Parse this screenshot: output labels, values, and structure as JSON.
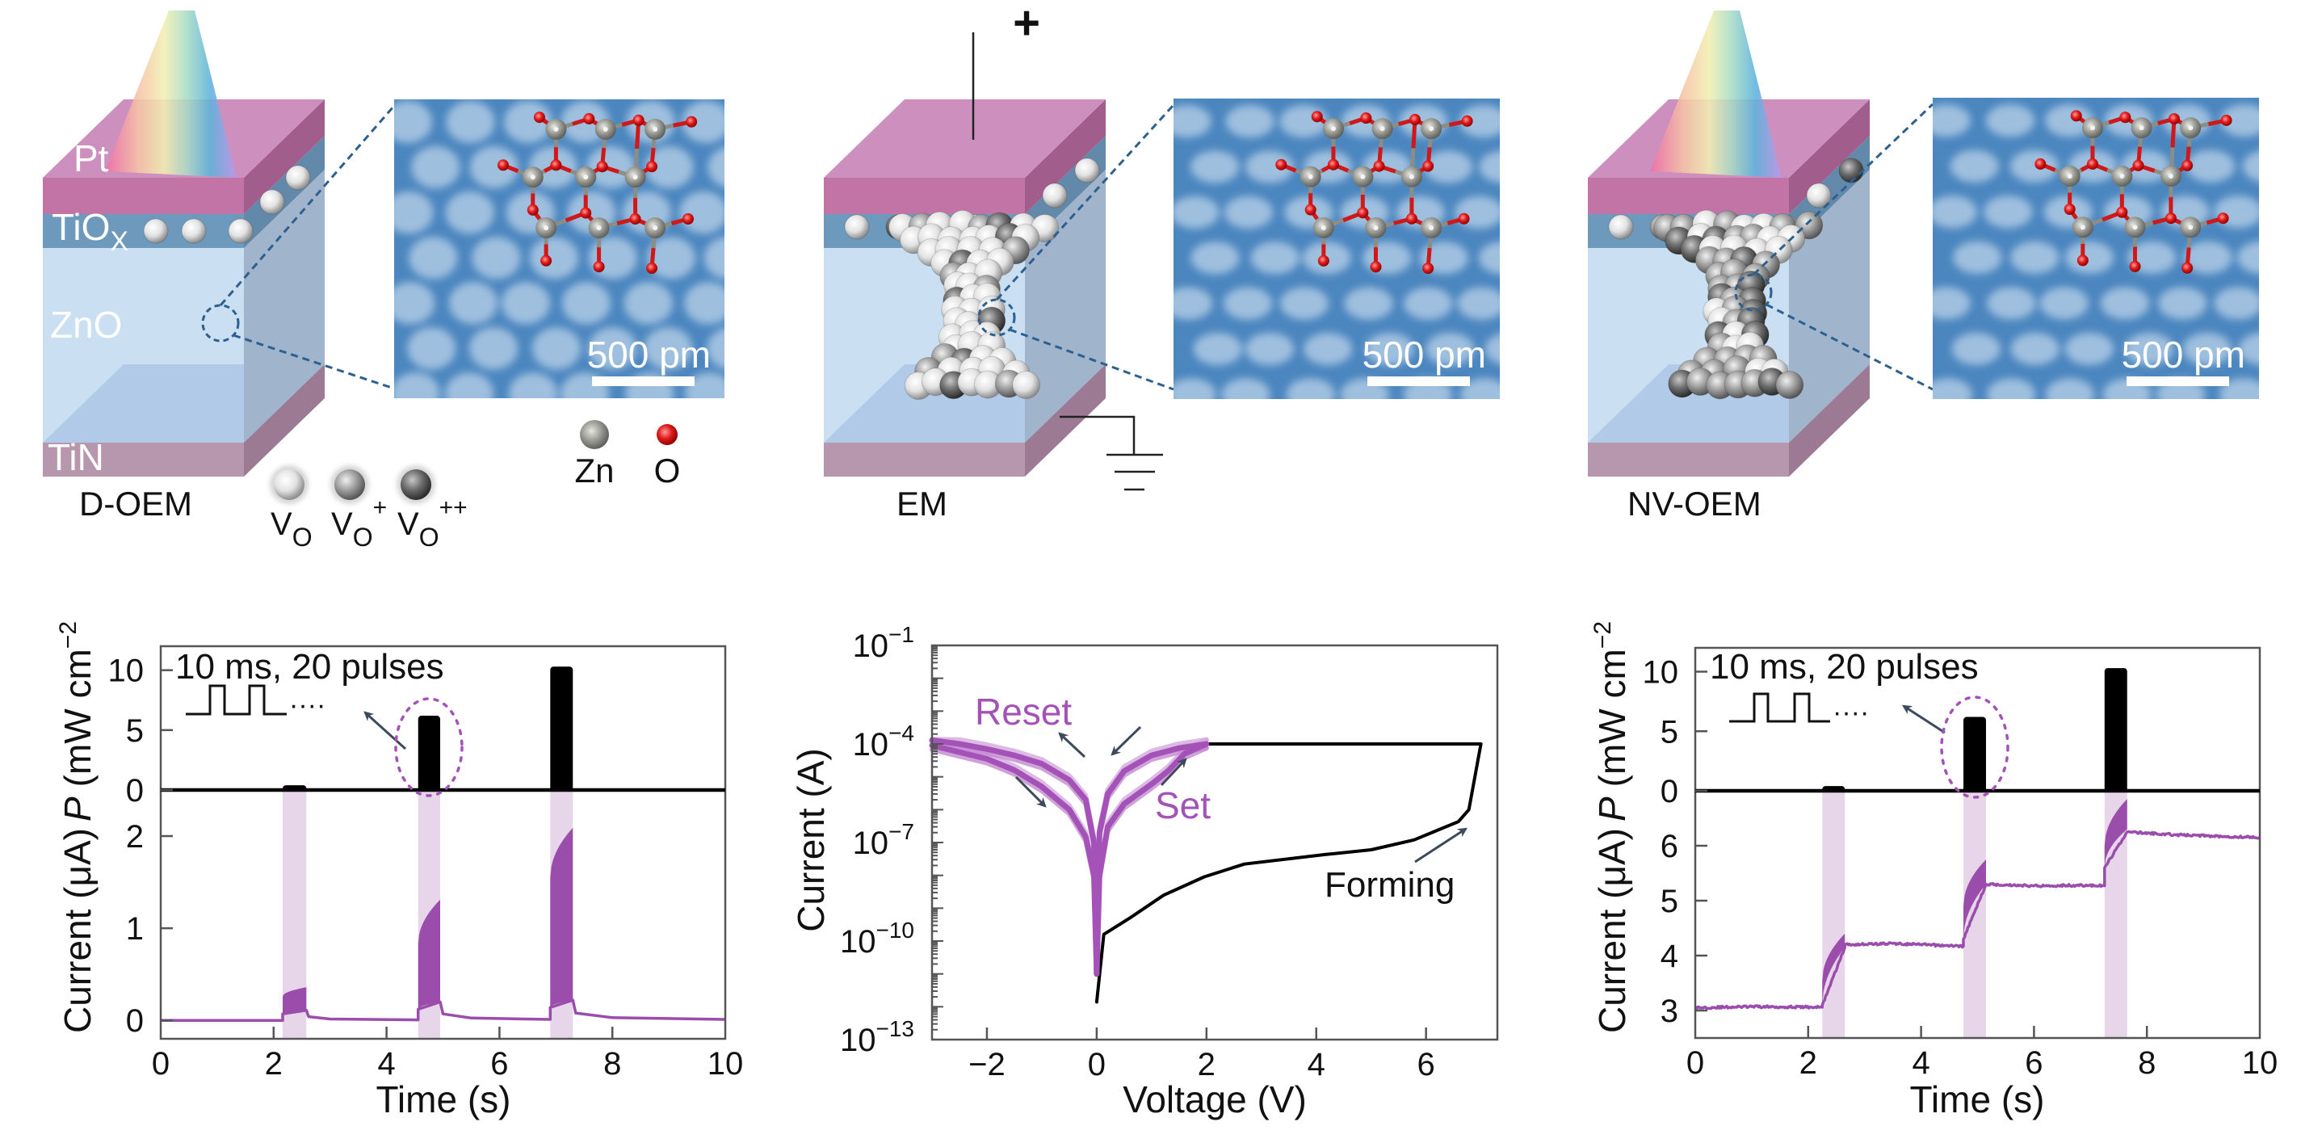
{
  "panels": [
    {
      "name": "D-OEM",
      "layer_labels": {
        "pt": "Pt",
        "tiox": "TiO",
        "tiox_sub": "X",
        "zno": "ZnO",
        "tin": "TiN"
      },
      "scale_bar": "500 pm",
      "illumination": true,
      "filament": "none"
    },
    {
      "name": "EM",
      "bias": "+",
      "scale_bar": "500 pm",
      "illumination": false,
      "filament": "mixed"
    },
    {
      "name": "NV-OEM",
      "scale_bar": "500 pm",
      "illumination": true,
      "filament": "grey"
    }
  ],
  "vacancy_legend": [
    {
      "symbol": "V",
      "sub": "O",
      "sup": ""
    },
    {
      "symbol": "V",
      "sub": "O",
      "sup": "+"
    },
    {
      "symbol": "V",
      "sub": "O",
      "sup": "++"
    }
  ],
  "atom_legend": [
    {
      "label": "Zn",
      "color": "#9a9a96"
    },
    {
      "label": "O",
      "color": "#d41c1c"
    }
  ],
  "colors": {
    "trace": "#9b4dab",
    "pulse_band": "#e7d5ea",
    "switching": "#a452b8",
    "forming": "#000000",
    "arrow": "#3c4a5c",
    "micrograph": "#4b86bf"
  },
  "chart_data": [
    {
      "type": "line",
      "panel": "D-OEM",
      "xlabel": "Time (s)",
      "xlim": [
        0,
        10
      ],
      "xticks": [
        0,
        2,
        4,
        6,
        8,
        10
      ],
      "annotation": "10 ms, 20 pulses",
      "top": {
        "ylabel": {
          "symbol": "P",
          "unit": "(mW cm",
          "exp": "−2"
        },
        "ylim": [
          0,
          12
        ],
        "yticks": [
          0,
          5,
          10
        ],
        "pulses": [
          {
            "start": 2.16,
            "end": 2.58,
            "power": 0.4
          },
          {
            "start": 4.56,
            "end": 4.95,
            "power": 6.2
          },
          {
            "start": 6.9,
            "end": 7.3,
            "power": 10.3
          }
        ]
      },
      "bottom": {
        "ylabel": "Current (μA)",
        "ylim": [
          -0.2,
          2.5
        ],
        "yticks": [
          0,
          1,
          2
        ],
        "series": [
          [
            0,
            0
          ],
          [
            2.16,
            0
          ],
          [
            2.16,
            0.07
          ],
          [
            2.58,
            0.11
          ],
          [
            2.62,
            0.04
          ],
          [
            3.0,
            0.015
          ],
          [
            4.56,
            0.005
          ],
          [
            4.56,
            0.12
          ],
          [
            4.95,
            0.2
          ],
          [
            5.0,
            0.07
          ],
          [
            5.5,
            0.025
          ],
          [
            6.9,
            0.01
          ],
          [
            6.9,
            0.14
          ],
          [
            7.3,
            0.22
          ],
          [
            7.35,
            0.08
          ],
          [
            8.0,
            0.03
          ],
          [
            10,
            0.01
          ]
        ],
        "envelopes": [
          {
            "start": 2.16,
            "end": 2.58,
            "lower": [
              0.07,
              0.11
            ],
            "upper": [
              0.26,
              0.36
            ]
          },
          {
            "start": 4.56,
            "end": 4.95,
            "lower": [
              0.12,
              0.2
            ],
            "upper": [
              0.83,
              1.31
            ]
          },
          {
            "start": 6.9,
            "end": 7.3,
            "lower": [
              0.14,
              0.22
            ],
            "upper": [
              1.55,
              2.09
            ]
          }
        ]
      }
    },
    {
      "type": "line",
      "panel": "EM",
      "xlabel": "Voltage (V)",
      "ylabel": "Current (A)",
      "yscale": "log",
      "xlim": [
        -3,
        7.3
      ],
      "xticks": [
        -2,
        0,
        2,
        4,
        6
      ],
      "xtick_labels": [
        "−2",
        "0",
        "2",
        "4",
        "6"
      ],
      "ylim": [
        1e-13,
        0.1
      ],
      "yticks": [
        0.1,
        0.0001,
        1e-07,
        1e-10,
        1e-13
      ],
      "ytick_labels": [
        {
          "base": "10",
          "exp": "−1"
        },
        {
          "base": "10",
          "exp": "−4"
        },
        {
          "base": "10",
          "exp": "−7"
        },
        {
          "base": "10",
          "exp": "−10"
        },
        {
          "base": "10",
          "exp": "−13"
        }
      ],
      "series": [
        {
          "name": "Reset",
          "curves": [
            [
              [
                -3,
                0.00013
              ],
              [
                -2.5,
                0.0001
              ],
              [
                -2,
                7e-05
              ],
              [
                -1.5,
                4.5e-05
              ],
              [
                -1,
                2.5e-05
              ],
              [
                -0.5,
                8e-06
              ],
              [
                -0.2,
                2e-06
              ],
              [
                -0.05,
                1e-07
              ],
              [
                0,
                1e-11
              ]
            ],
            [
              [
                -3,
                9e-05
              ],
              [
                -2,
                3.5e-05
              ],
              [
                -1.5,
                1.6e-05
              ],
              [
                -1,
                5e-06
              ],
              [
                -0.5,
                1e-06
              ],
              [
                -0.2,
                1.5e-07
              ],
              [
                -0.05,
                1e-08
              ],
              [
                0,
                1e-11
              ]
            ]
          ]
        },
        {
          "name": "Set",
          "curves": [
            [
              [
                0,
                1e-11
              ],
              [
                0.05,
                1e-08
              ],
              [
                0.2,
                3e-07
              ],
              [
                0.5,
                1.5e-06
              ],
              [
                1,
                6e-06
              ],
              [
                1.3,
                1.5e-05
              ],
              [
                1.6,
                5e-05
              ],
              [
                2,
                0.0001
              ]
            ],
            [
              [
                0,
                1e-11
              ],
              [
                0.05,
                2e-07
              ],
              [
                0.2,
                3e-06
              ],
              [
                0.5,
                1.5e-05
              ],
              [
                1,
                4.5e-05
              ],
              [
                1.5,
                7.5e-05
              ],
              [
                2,
                0.0001
              ]
            ]
          ]
        },
        {
          "name": "Forming",
          "points": [
            [
              0,
              1.4e-12
            ],
            [
              0.13,
              1.6e-10
            ],
            [
              0.6,
              5e-10
            ],
            [
              1.22,
              2.5e-09
            ],
            [
              1.96,
              9e-09
            ],
            [
              2.69,
              2.2e-08
            ],
            [
              4.16,
              4.3e-08
            ],
            [
              5.0,
              6e-08
            ],
            [
              5.78,
              1.2e-07
            ],
            [
              6.59,
              4.3e-07
            ],
            [
              6.78,
              1e-06
            ],
            [
              7.0,
              0.0001
            ],
            [
              2.0,
              0.0001
            ]
          ]
        }
      ]
    },
    {
      "type": "line",
      "panel": "NV-OEM",
      "xlabel": "Time (s)",
      "xlim": [
        0,
        10
      ],
      "xticks": [
        0,
        2,
        4,
        6,
        8,
        10
      ],
      "annotation": "10 ms, 20 pulses",
      "top": {
        "ylabel": {
          "symbol": "P",
          "unit": "(mW cm",
          "exp": "−2"
        },
        "ylim": [
          0,
          12
        ],
        "yticks": [
          0,
          5,
          10
        ],
        "pulses": [
          {
            "start": 2.25,
            "end": 2.65,
            "power": 0.4
          },
          {
            "start": 4.75,
            "end": 5.15,
            "power": 6.2
          },
          {
            "start": 7.25,
            "end": 7.65,
            "power": 10.3
          }
        ]
      },
      "bottom": {
        "ylabel": "Current (μA)",
        "ylim": [
          2.5,
          7.0
        ],
        "yticks": [
          3,
          4,
          5,
          6
        ],
        "series": [
          [
            0,
            3.05
          ],
          [
            1,
            3.07
          ],
          [
            2.25,
            3.06
          ],
          [
            2.25,
            3.1
          ],
          [
            2.65,
            4.15
          ],
          [
            2.65,
            4.2
          ],
          [
            3.5,
            4.22
          ],
          [
            4.75,
            4.17
          ],
          [
            4.75,
            4.3
          ],
          [
            5.15,
            5.3
          ],
          [
            6.0,
            5.27
          ],
          [
            6.7,
            5.28
          ],
          [
            7.25,
            5.27
          ],
          [
            7.25,
            5.6
          ],
          [
            7.65,
            6.25
          ],
          [
            8.5,
            6.2
          ],
          [
            10,
            6.15
          ]
        ],
        "envelopes": [
          {
            "start": 2.25,
            "end": 2.65,
            "lower": [
              3.1,
              4.15
            ],
            "upper": [
              3.55,
              4.4
            ]
          },
          {
            "start": 4.75,
            "end": 5.15,
            "lower": [
              4.3,
              5.3
            ],
            "upper": [
              4.9,
              5.75
            ]
          },
          {
            "start": 7.25,
            "end": 7.65,
            "lower": [
              5.6,
              6.3
            ],
            "upper": [
              6.0,
              6.85
            ]
          }
        ]
      }
    }
  ]
}
